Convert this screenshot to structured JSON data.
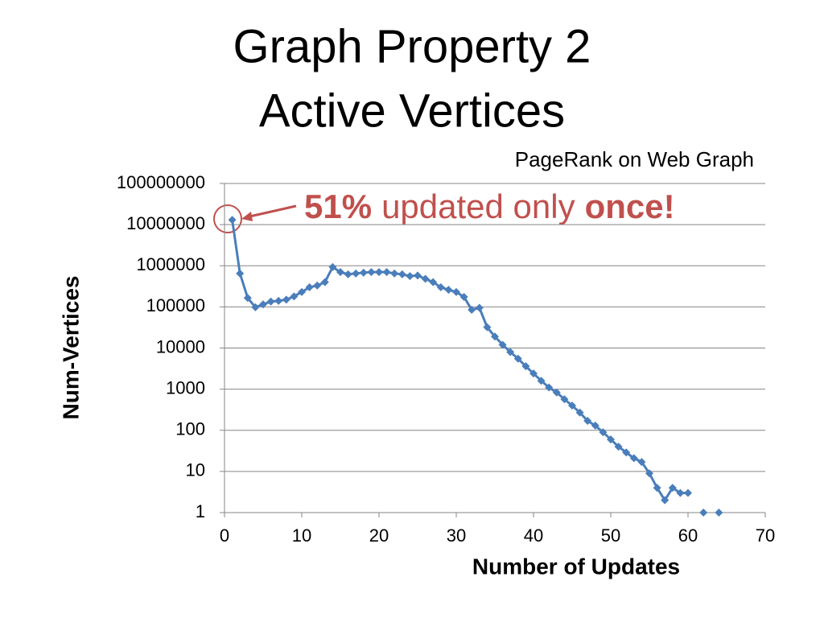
{
  "slide_title": [
    "Graph Property 2",
    "Active Vertices"
  ],
  "chart_data": {
    "type": "line",
    "title": "PageRank on Web Graph",
    "annotation": [
      "51%",
      "updated only",
      "once!"
    ],
    "xlabel": "Number of Updates",
    "ylabel": "Num-Vertices",
    "log_y": true,
    "grid": true,
    "xlim": [
      0,
      70
    ],
    "xticks": [
      0,
      10,
      20,
      30,
      40,
      50,
      60,
      70
    ],
    "ylim": [
      1,
      100000000
    ],
    "yticks": [
      1,
      10,
      100,
      1000,
      10000,
      100000,
      1000000,
      10000000,
      100000000
    ],
    "x": [
      1,
      2,
      3,
      4,
      5,
      6,
      7,
      8,
      9,
      10,
      11,
      12,
      13,
      14,
      15,
      16,
      17,
      18,
      19,
      20,
      21,
      22,
      23,
      24,
      25,
      26,
      27,
      28,
      29,
      30,
      31,
      32,
      33,
      34,
      35,
      36,
      37,
      38,
      39,
      40,
      41,
      42,
      43,
      44,
      45,
      46,
      47,
      48,
      49,
      50,
      51,
      52,
      53,
      54,
      55,
      56,
      57,
      58,
      59,
      60,
      61,
      62,
      63,
      64
    ],
    "series": [
      {
        "name": "Num-Vertices",
        "color": "#4a7ebb",
        "values": [
          13000000,
          650000,
          165000,
          98000,
          115000,
          135000,
          140000,
          150000,
          180000,
          230000,
          300000,
          330000,
          400000,
          930000,
          700000,
          620000,
          650000,
          680000,
          700000,
          700000,
          700000,
          650000,
          620000,
          560000,
          580000,
          480000,
          400000,
          300000,
          260000,
          230000,
          175000,
          85000,
          95000,
          32000,
          19000,
          12000,
          8000,
          5500,
          3600,
          2400,
          1600,
          1100,
          830,
          570,
          400,
          270,
          170,
          130,
          90,
          60,
          40,
          29,
          21,
          17,
          9,
          4,
          2,
          4,
          3,
          3,
          null,
          1,
          null,
          1
        ]
      }
    ]
  }
}
